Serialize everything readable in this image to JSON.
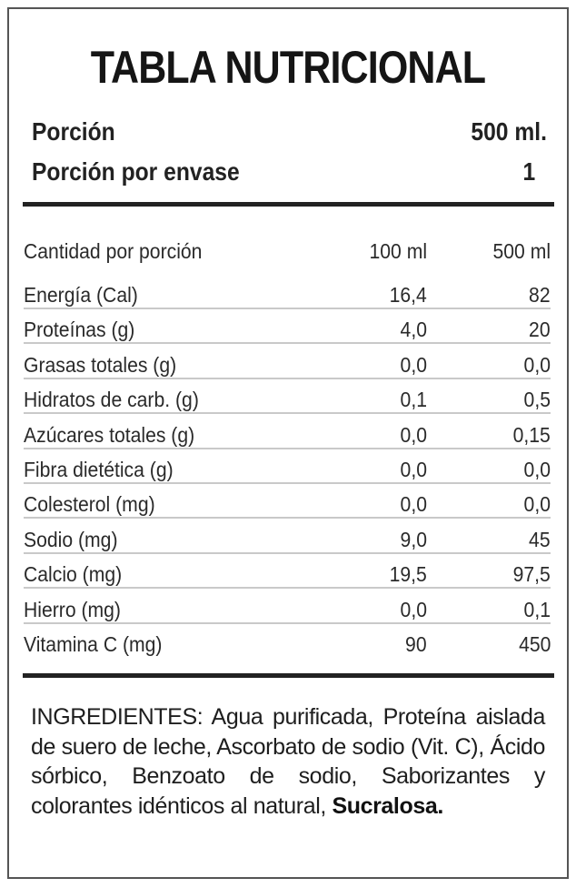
{
  "title": "TABLA NUTRICIONAL",
  "serving": {
    "size_label": "Porción",
    "size_value": "500 ml.",
    "per_container_label": "Porción por envase",
    "per_container_value": "1"
  },
  "table": {
    "header": {
      "name": "Cantidad por porción",
      "col_100": "100 ml",
      "col_500": "500 ml"
    },
    "rows": [
      {
        "name": "Energía (Cal)",
        "v100": "16,4",
        "v500": "82"
      },
      {
        "name": "Proteínas (g)",
        "v100": "4,0",
        "v500": "20"
      },
      {
        "name": "Grasas totales (g)",
        "v100": "0,0",
        "v500": "0,0"
      },
      {
        "name": "Hidratos de carb. (g)",
        "v100": "0,1",
        "v500": "0,5"
      },
      {
        "name": "Azúcares totales (g)",
        "v100": "0,0",
        "v500": "0,15"
      },
      {
        "name": "Fibra dietética (g)",
        "v100": "0,0",
        "v500": "0,0"
      },
      {
        "name": "Colesterol (mg)",
        "v100": "0,0",
        "v500": "0,0"
      },
      {
        "name": "Sodio (mg)",
        "v100": "9,0",
        "v500": "45"
      },
      {
        "name": "Calcio (mg)",
        "v100": "19,5",
        "v500": "97,5"
      },
      {
        "name": "Hierro (mg)",
        "v100": "0,0",
        "v500": "0,1"
      },
      {
        "name": "Vitamina C (mg)",
        "v100": "90",
        "v500": "450"
      }
    ]
  },
  "ingredients": {
    "text": "INGREDIENTES: Agua purificada, Proteína aislada de suero de leche, Ascorbato de sodio (Vit. C), Ácido sórbico, Benzoato de sodio, Saborizantes y colorantes idénticos al natural, ",
    "bold_tail": "Sucralosa."
  },
  "colors": {
    "text": "#1e1e1e",
    "border": "#555555",
    "rule": "#222222",
    "row_separator": "#c9c9c9",
    "background": "#ffffff"
  }
}
